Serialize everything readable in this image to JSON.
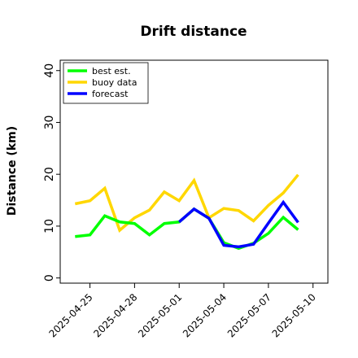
{
  "chart_data": {
    "type": "line",
    "title": "Drift distance",
    "xlabel": "",
    "ylabel": "Distance (km)",
    "x": [
      "2025-04-24",
      "2025-04-25",
      "2025-04-26",
      "2025-04-27",
      "2025-04-28",
      "2025-04-29",
      "2025-04-30",
      "2025-05-01",
      "2025-05-02",
      "2025-05-03",
      "2025-05-04",
      "2025-05-05",
      "2025-05-06",
      "2025-05-07",
      "2025-05-08",
      "2025-05-09"
    ],
    "xlim": [
      "2025-04-23",
      "2025-05-11"
    ],
    "ylim": [
      -1,
      42
    ],
    "yticks": [
      0,
      10,
      20,
      30,
      40
    ],
    "xticks": [
      {
        "date": "2025-04-25",
        "label": "2025-04-25",
        "color": "#000000"
      },
      {
        "date": "2025-04-28",
        "label": "2025-04-28",
        "color": "#000000"
      },
      {
        "date": "2025-05-01",
        "label": "2025-05-01",
        "color": "#2e8b2e"
      },
      {
        "date": "2025-05-04",
        "label": "2025-05-04",
        "color": "#000000"
      },
      {
        "date": "2025-05-07",
        "label": "2025-05-07",
        "color": "#000000"
      },
      {
        "date": "2025-05-10",
        "label": "2025-05-10",
        "color": "#000000"
      }
    ],
    "grid": false,
    "legend_position": "top-left",
    "series": [
      {
        "name": "buoy data",
        "color": "#ffd700",
        "points": [
          [
            "2025-04-24",
            14.3
          ],
          [
            "2025-04-25",
            14.9
          ],
          [
            "2025-04-26",
            17.3
          ],
          [
            "2025-04-27",
            9.2
          ],
          [
            "2025-04-28",
            11.6
          ],
          [
            "2025-04-29",
            13.1
          ],
          [
            "2025-04-30",
            16.6
          ],
          [
            "2025-05-01",
            14.9
          ],
          [
            "2025-05-02",
            18.8
          ],
          [
            "2025-05-03",
            11.6
          ],
          [
            "2025-05-04",
            13.4
          ],
          [
            "2025-05-05",
            13.0
          ],
          [
            "2025-05-06",
            11.0
          ],
          [
            "2025-05-07",
            14.0
          ],
          [
            "2025-05-08",
            16.4
          ],
          [
            "2025-05-09",
            19.9
          ]
        ]
      },
      {
        "name": "best est.",
        "color": "#00ff00",
        "points": [
          [
            "2025-04-24",
            8.0
          ],
          [
            "2025-04-25",
            8.3
          ],
          [
            "2025-04-26",
            12.0
          ],
          [
            "2025-04-27",
            10.8
          ],
          [
            "2025-04-28",
            10.5
          ],
          [
            "2025-04-29",
            8.3
          ],
          [
            "2025-04-30",
            10.5
          ],
          [
            "2025-05-01",
            10.8
          ],
          [
            "2025-05-02",
            13.3
          ],
          [
            "2025-05-03",
            11.5
          ],
          [
            "2025-05-04",
            6.8
          ],
          [
            "2025-05-05",
            5.7
          ],
          [
            "2025-05-06",
            6.7
          ],
          [
            "2025-05-07",
            8.6
          ],
          [
            "2025-05-08",
            11.7
          ],
          [
            "2025-05-09",
            9.3
          ]
        ]
      },
      {
        "name": "forecast",
        "color": "#0000ff",
        "points": [
          [
            "2025-05-01",
            10.8
          ],
          [
            "2025-05-02",
            13.3
          ],
          [
            "2025-05-03",
            11.5
          ],
          [
            "2025-05-04",
            6.3
          ],
          [
            "2025-05-05",
            6.0
          ],
          [
            "2025-05-06",
            6.5
          ],
          [
            "2025-05-07",
            10.6
          ],
          [
            "2025-05-08",
            14.6
          ],
          [
            "2025-05-09",
            10.7
          ]
        ]
      }
    ],
    "legend": [
      {
        "name": "best est.",
        "color": "#00ff00"
      },
      {
        "name": "buoy data",
        "color": "#ffd700"
      },
      {
        "name": "forecast",
        "color": "#0000ff"
      }
    ]
  }
}
